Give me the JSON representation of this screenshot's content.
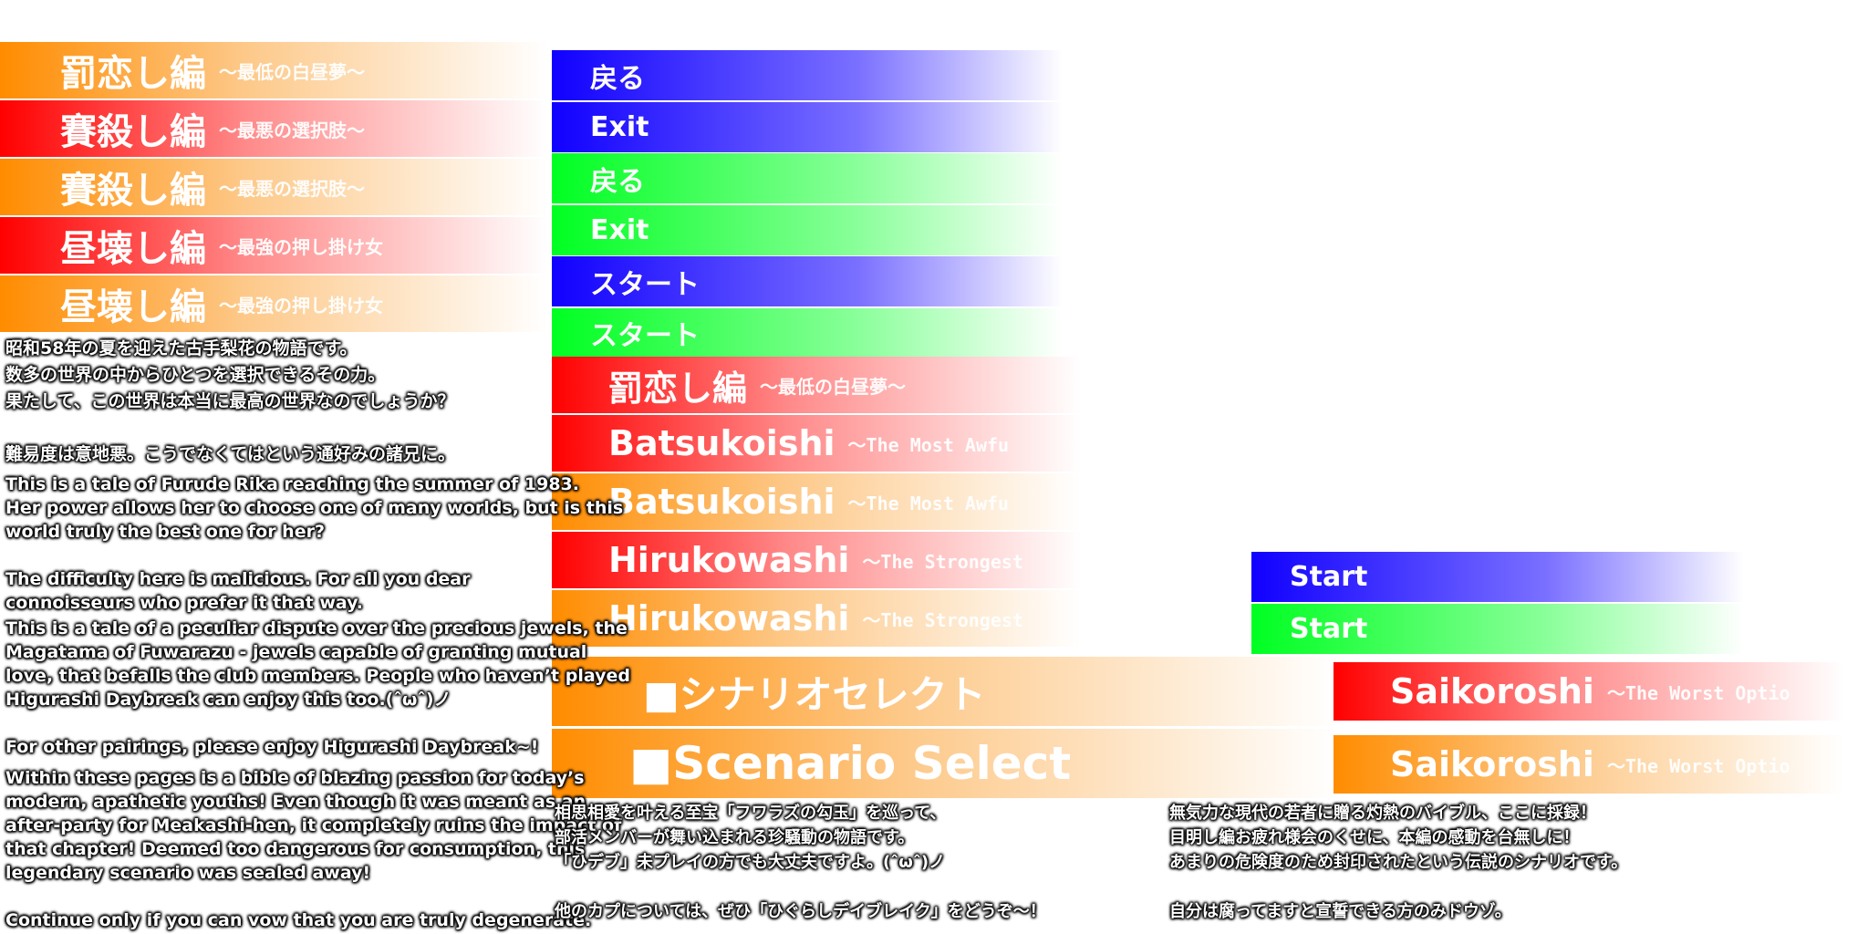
{
  "colors": {
    "orange": "#ff8c00",
    "red": "#ff0000",
    "blue": "#1000ff",
    "green": "#00ff22"
  },
  "left_chapters": [
    {
      "title": "罰恋し編",
      "subtitle": "～最低の白昼夢～",
      "color": "orange"
    },
    {
      "title": "賽殺し編",
      "subtitle": "～最悪の選択肢～",
      "color": "red"
    },
    {
      "title": "賽殺し編",
      "subtitle": "～最悪の選択肢～",
      "color": "orange"
    },
    {
      "title": "昼壊し編",
      "subtitle": "～最強の押し掛け女",
      "color": "red"
    },
    {
      "title": "昼壊し編",
      "subtitle": "～最強の押し掛け女",
      "color": "orange"
    }
  ],
  "buttons": [
    {
      "label": "戻る",
      "color": "blue"
    },
    {
      "label": "Exit",
      "color": "blue"
    },
    {
      "label": "戻る",
      "color": "green"
    },
    {
      "label": "Exit",
      "color": "green"
    },
    {
      "label": "スタート",
      "color": "blue"
    },
    {
      "label": "スタート",
      "color": "green"
    }
  ],
  "mid_chapters": [
    {
      "title": "罰恋し編",
      "subtitle": "～最低の白昼夢～",
      "color": "red"
    },
    {
      "title": "Batsukoishi",
      "subtitle": "～The Most Awfu",
      "color": "red"
    },
    {
      "title": "Batsukoishi",
      "subtitle": "～The Most Awfu",
      "color": "orange"
    },
    {
      "title": "Hirukowashi",
      "subtitle": "～The Strongest",
      "color": "red"
    },
    {
      "title": "Hirukowashi",
      "subtitle": "～The Strongest",
      "color": "orange"
    }
  ],
  "scenario_select": {
    "jp": "■シナリオセレクト",
    "en": "■Scenario Select"
  },
  "start_buttons": [
    {
      "label": "Start",
      "color": "blue"
    },
    {
      "label": "Start",
      "color": "green"
    }
  ],
  "saikoroshi": [
    {
      "title": "Saikoroshi",
      "subtitle": "～The Worst Optio",
      "color": "red"
    },
    {
      "title": "Saikoroshi",
      "subtitle": "～The Worst Optio",
      "color": "orange"
    }
  ],
  "descriptions": {
    "hirukowashi_jp": "昭和58年の夏を迎えた古手梨花の物語です。\n数多の世界の中からひとつを選択できるその力。\n果たして、この世界は本当に最高の世界なのでしょうか？\n\n難易度は意地悪。こうでなくてはという通好みの諸兄に。",
    "hirukowashi_en": "This is a tale of Furude Rika reaching the summer of 1983.\nHer power allows her to choose one of many worlds, but is this\nworld truly the best one for her?\n\nThe difficulty here is malicious. For all you dear\nconnoisseurs who prefer it that way.",
    "batsukoishi_en": "This is a tale of a peculiar dispute over the precious jewels, the\nMagatama of Fuwarazu - jewels capable of granting mutual\nlove, that befalls the club members. People who haven’t played\nHigurashi Daybreak can enjoy this too.(ˆωˆ)ノ\n\nFor other pairings, please enjoy Higurashi Daybreak~!",
    "saikoroshi_en": "Within these pages is a bible of blazing passion for today’s\nmodern, apathetic youths! Even though it was meant as an\nafter-party for Meakashi-hen, it completely ruins the impact of\nthat chapter! Deemed too dangerous for consumption, this\nlegendary scenario was sealed away!\n\nContinue only if you can vow that you are truly degenerate.",
    "batsukoishi_jp": "相思相愛を叶える至宝「フワラズの勾玉」を巡って、\n部活メンバーが舞い込まれる珍騒動の物語です。\n「ひデブ」未プレイの方でも大丈夫ですよ。(ˆωˆ)ノ\n\n他のカプについては、ぜひ「ひぐらしデイブレイク」をどうぞ～！",
    "saikoroshi_jp": "無気力な現代の若者に贈る灼熱のバイブル、ここに採録！\n目明し編お疲れ様会のくせに、本編の感動を台無しに！\nあまりの危険度のため封印されたという伝説のシナリオです。\n\n自分は腐ってますと宣誓できる方のみドウゾ。"
  }
}
